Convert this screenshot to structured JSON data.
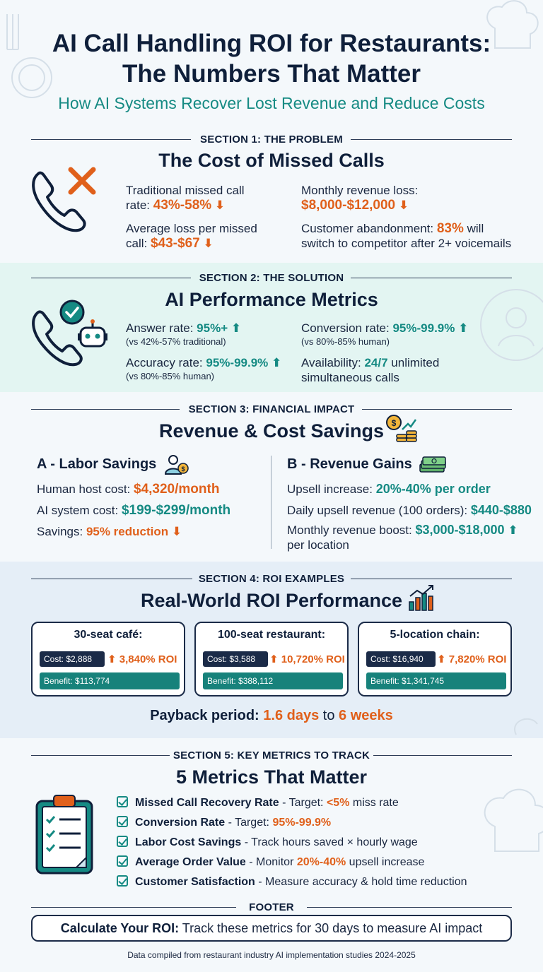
{
  "header": {
    "title_line1": "AI Call Handling ROI for Restaurants:",
    "title_line2": "The Numbers That Matter",
    "subtitle": "How AI Systems Recover Lost Revenue and Reduce Costs"
  },
  "section1": {
    "label": "SECTION 1: THE PROBLEM",
    "title": "The Cost of Missed Calls",
    "missed_rate_label_1": "Traditional missed call",
    "missed_rate_label_2": "rate:",
    "missed_rate_value": "43%-58%",
    "avg_loss_label_1": "Average loss per missed",
    "avg_loss_label_2": "call:",
    "avg_loss_value": "$43-$67",
    "monthly_loss_label": "Monthly revenue loss:",
    "monthly_loss_value": "$8,000-$12,000",
    "abandon_label": "Customer abandonment:",
    "abandon_value": "83%",
    "abandon_suffix_1": "will",
    "abandon_suffix_2": "switch to competitor after 2+ voicemails"
  },
  "section2": {
    "label": "SECTION 2: THE SOLUTION",
    "title": "AI Performance Metrics",
    "answer_label": "Answer rate:",
    "answer_value": "95%+",
    "answer_note": "(vs 42%-57% traditional)",
    "accuracy_label": "Accuracy rate:",
    "accuracy_value": "95%-99.9%",
    "accuracy_note": "(vs 80%-85% human)",
    "conversion_label": "Conversion rate:",
    "conversion_value": "95%-99.9%",
    "conversion_note": "(vs 80%-85% human)",
    "availability_label": "Availability:",
    "availability_value": "24/7",
    "availability_suffix_1": "unlimited",
    "availability_suffix_2": "simultaneous calls"
  },
  "section3": {
    "label": "SECTION 3: FINANCIAL IMPACT",
    "title": "Revenue & Cost Savings",
    "a_title": "A - Labor Savings",
    "a_host_label": "Human host cost:",
    "a_host_value": "$4,320/month",
    "a_ai_label": "AI system cost:",
    "a_ai_value": "$199-$299/month",
    "a_savings_label": "Savings:",
    "a_savings_value": "95% reduction",
    "b_title": "B - Revenue Gains",
    "b_upsell_label": "Upsell increase:",
    "b_upsell_value": "20%-40% per order",
    "b_daily_label": "Daily upsell revenue (100 orders):",
    "b_daily_value": "$440-$880",
    "b_monthly_label": "Monthly revenue boost:",
    "b_monthly_value": "$3,000-$18,000",
    "b_monthly_suffix": "per location"
  },
  "section4": {
    "label": "SECTION 4: ROI EXAMPLES",
    "title": "Real-World ROI Performance",
    "cards": [
      {
        "title": "30-seat café:",
        "cost": "Cost: $2,888",
        "roi": "3,840% ROI",
        "benefit": "Benefit: $113,774"
      },
      {
        "title": "100-seat restaurant:",
        "cost": "Cost: $3,588",
        "roi": "10,720% ROI",
        "benefit": "Benefit: $388,112"
      },
      {
        "title": "5-location chain:",
        "cost": "Cost: $16,940",
        "roi": "7,820% ROI",
        "benefit": "Benefit: $1,341,745"
      }
    ],
    "payback_label": "Payback period:",
    "payback_min": "1.6 days",
    "payback_to": "to",
    "payback_max": "6 weeks"
  },
  "section5": {
    "label": "SECTION 5: KEY METRICS TO TRACK",
    "title": "5 Metrics That Matter",
    "items": [
      {
        "name": "Missed Call Recovery Rate",
        "desc": " - Target: ",
        "highlight": "<5%",
        "tail": " miss rate"
      },
      {
        "name": "Conversion Rate",
        "desc": " - Target: ",
        "highlight": "95%-99.9%",
        "tail": ""
      },
      {
        "name": "Labor Cost Savings",
        "desc": " - Track hours saved × hourly wage",
        "highlight": "",
        "tail": ""
      },
      {
        "name": "Average Order Value",
        "desc": " - Monitor ",
        "highlight": "20%-40%",
        "tail": " upsell increase"
      },
      {
        "name": "Customer Satisfaction",
        "desc": " - Measure accuracy & hold time reduction",
        "highlight": "",
        "tail": ""
      }
    ]
  },
  "footer": {
    "label": "FOOTER",
    "cta_bold": "Calculate Your ROI:",
    "cta_text": " Track these metrics for 30 days to measure AI impact",
    "source": "Data compiled from restaurant industry AI implementation studies 2024-2025"
  },
  "colors": {
    "navy": "#0f1f3a",
    "orange": "#e0601b",
    "teal": "#158a83",
    "section2_bg": "#e3f5f2",
    "section4_bg": "#e5eef7"
  }
}
